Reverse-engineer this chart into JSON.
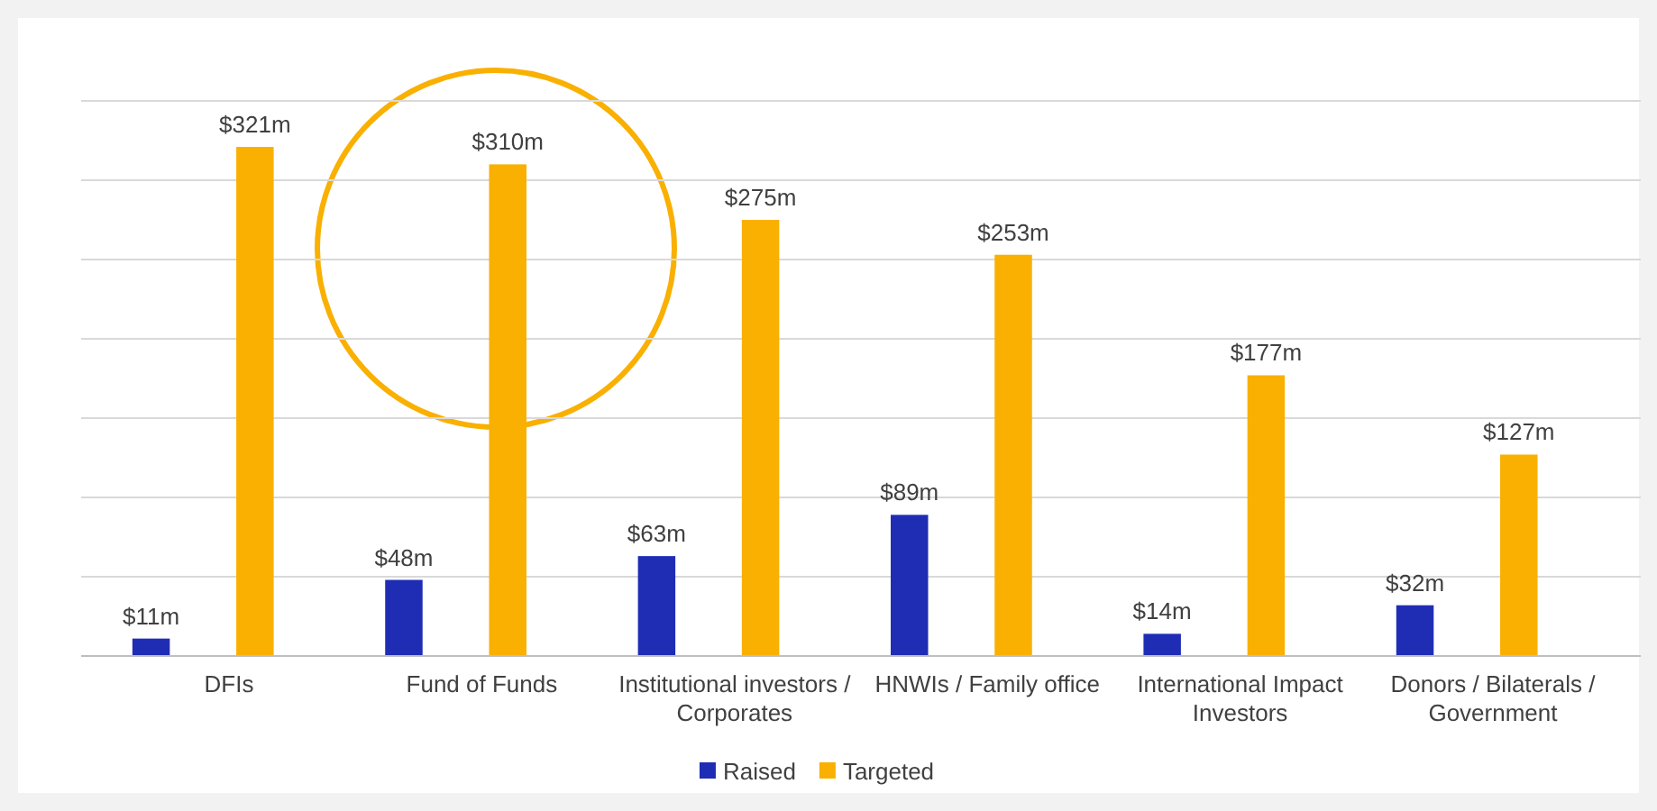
{
  "chart_data": {
    "type": "bar",
    "categories": [
      "DFIs",
      "Fund of Funds",
      "Institutional investors / Corporates",
      "HNWIs / Family office",
      "International Impact Investors",
      "Donors / Bilaterals / Government"
    ],
    "series": [
      {
        "name": "Raised",
        "color": "#1f2db5",
        "values": [
          11,
          48,
          63,
          89,
          14,
          32
        ],
        "value_labels": [
          "$11m",
          "$48m",
          "$63m",
          "$89m",
          "$14m",
          "$32m"
        ]
      },
      {
        "name": "Targeted",
        "color": "#f9b000",
        "values": [
          321,
          310,
          275,
          253,
          177,
          127
        ],
        "value_labels": [
          "$321m",
          "$310m",
          "$275m",
          "$253m",
          "$177m",
          "$127m"
        ]
      }
    ],
    "ylim": [
      0,
      350
    ],
    "yticks": [
      {
        "value": 0,
        "label": null
      },
      {
        "value": 50,
        "label": null
      },
      {
        "value": 100,
        "label": null
      },
      {
        "value": 150,
        "label": null
      },
      {
        "value": 200,
        "label": null
      },
      {
        "value": 250,
        "label": null
      },
      {
        "value": 300,
        "label": null
      },
      {
        "value": 350,
        "label": null
      }
    ],
    "grid": "y",
    "legend": "bottom",
    "tick_labels": "x"
  }
}
